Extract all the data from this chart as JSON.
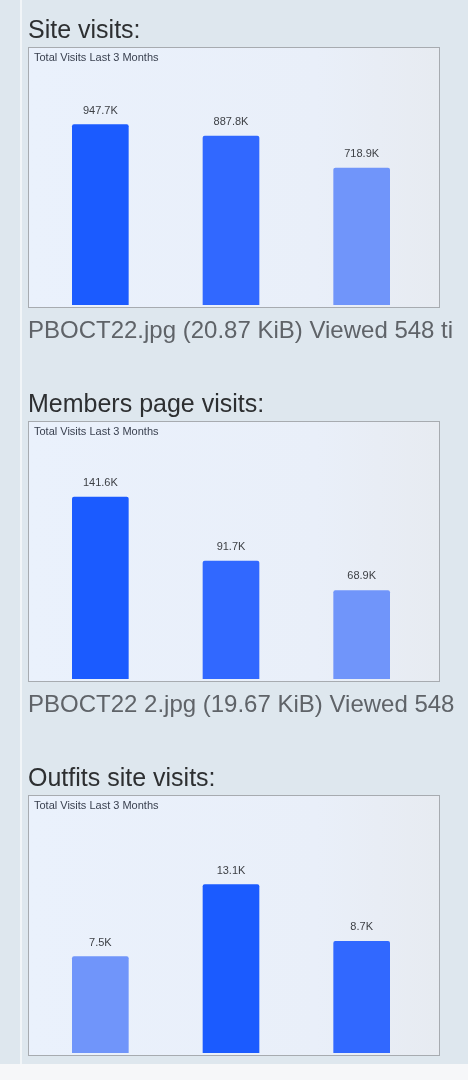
{
  "chart_data": [
    {
      "type": "bar",
      "title": "Site visits:",
      "subtitle": "Total Visits Last 3 Months",
      "categories": [
        null,
        null,
        null
      ],
      "values": [
        947.7,
        887.8,
        718.9
      ],
      "value_labels": [
        "947.7K",
        "887.8K",
        "718.9K"
      ],
      "colors": [
        "#1b5bff",
        "#3168ff",
        "#7095fa"
      ],
      "ylim": [
        0,
        1350
      ],
      "tick_labels": false,
      "annotations": [
        "PBOCT22.jpg (20.87 KiB) Viewed 548 ti"
      ]
    },
    {
      "type": "bar",
      "title": "Members page visits:",
      "subtitle": "Total Visits Last 3 Months",
      "categories": [
        null,
        null,
        null
      ],
      "values": [
        141.6,
        91.7,
        68.9
      ],
      "value_labels": [
        "141.6K",
        "91.7K",
        "68.9K"
      ],
      "colors": [
        "#1b5bff",
        "#3168ff",
        "#7095fa"
      ],
      "ylim": [
        0,
        200
      ],
      "tick_labels": false,
      "annotations": [
        "PBOCT22 2.jpg (19.67 KiB) Viewed 548"
      ]
    },
    {
      "type": "bar",
      "title": "Outfits site visits:",
      "subtitle": "Total Visits Last 3 Months",
      "categories": [
        null,
        null,
        null
      ],
      "values": [
        7.5,
        13.1,
        8.7
      ],
      "value_labels": [
        "7.5K",
        "13.1K",
        "8.7K"
      ],
      "colors": [
        "#7095fa",
        "#1b5bff",
        "#3168ff"
      ],
      "ylim": [
        0,
        20
      ],
      "tick_labels": false
    }
  ]
}
